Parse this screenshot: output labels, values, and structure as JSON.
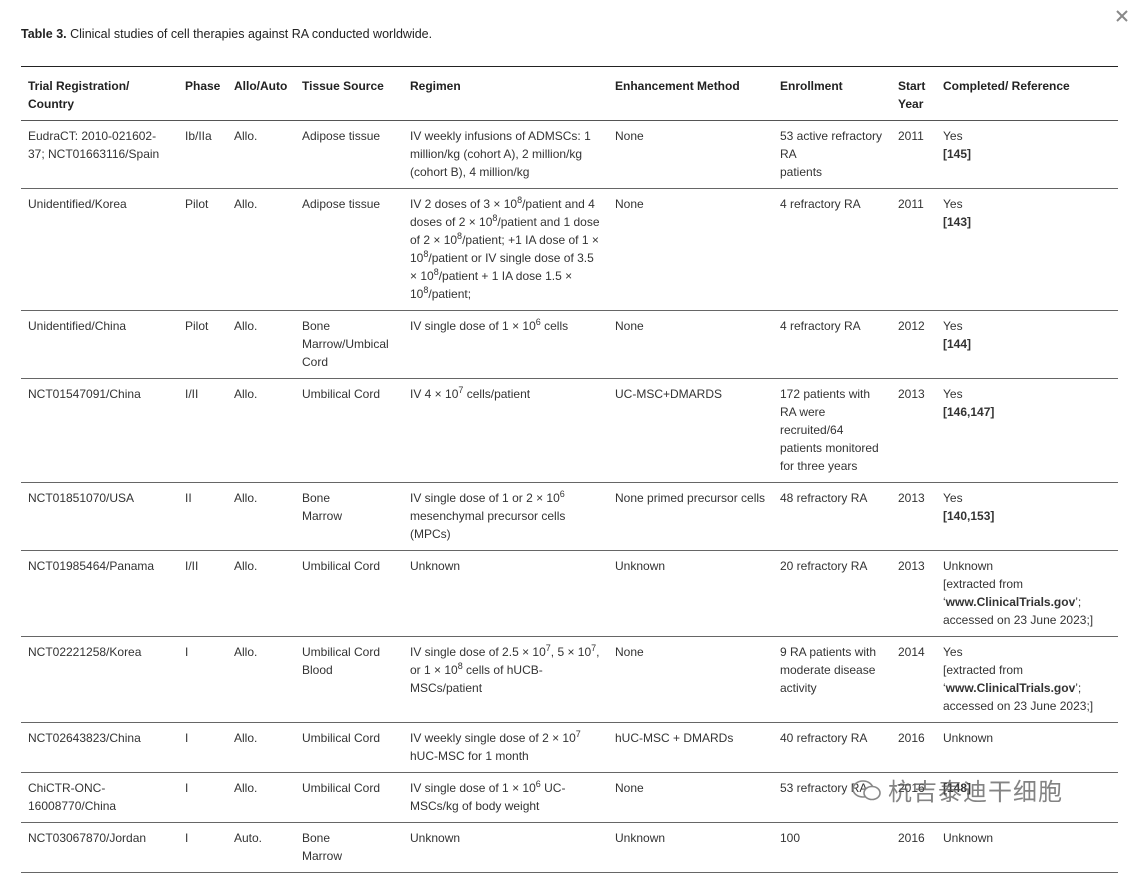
{
  "caption": {
    "label": "Table 3.",
    "text": "Clinical studies of cell therapies against RA conducted worldwide."
  },
  "watermark": "杭吉泰迪干细胞",
  "table": {
    "columns": [
      "Trial Registration/ Country",
      "Phase",
      "Allo/Auto",
      "Tissue Source",
      "Regimen",
      "Enhancement Method",
      "Enrollment",
      "Start Year",
      "Completed/ Reference"
    ],
    "rows": [
      [
        "EudraCT: 2010-021602-37; NCT01663116/Spain",
        "Ib/IIa",
        "Allo.",
        "Adipose tissue",
        "IV weekly infusions of ADMSCs: 1 million/kg (cohort A), 2 million/kg (cohort B), 4 million/kg",
        "None",
        [
          "53 active refractory RA",
          "patients"
        ],
        "2011",
        [
          "Yes",
          [
            {
              "bold": "[145]"
            }
          ]
        ]
      ],
      [
        "Unidentified/Korea",
        "Pilot",
        "Allo.",
        "Adipose tissue",
        [
          [
            "IV 2 doses of 3 × 10",
            {
              "sup": "8"
            },
            "/patient and 4 doses of 2 × 10",
            {
              "sup": "8"
            },
            "/patient and 1 dose of 2 × 10",
            {
              "sup": "8"
            },
            "/patient; +1 IA dose of 1 × 10",
            {
              "sup": "8"
            },
            "/patient or IV single dose of 3.5 × 10",
            {
              "sup": "8"
            },
            "/patient + 1 IA dose 1.5 × 10",
            {
              "sup": "8"
            },
            "/patient;"
          ]
        ],
        "None",
        "4 refractory RA",
        "2011",
        [
          "Yes",
          [
            {
              "bold": "[143]"
            }
          ]
        ]
      ],
      [
        "Unidentified/China",
        "Pilot",
        "Allo.",
        "Bone Marrow/Umbical Cord",
        [
          [
            "IV single dose of 1 × 10",
            {
              "sup": "6"
            },
            " cells"
          ]
        ],
        "None",
        "4 refractory RA",
        "2012",
        [
          "Yes",
          [
            {
              "bold": "[144]"
            }
          ]
        ]
      ],
      [
        "NCT01547091/China",
        "I/II",
        "Allo.",
        "Umbilical Cord",
        [
          [
            "IV 4 × 10",
            {
              "sup": "7"
            },
            " cells/patient"
          ]
        ],
        "UC-MSC+DMARDS",
        "172 patients with RA were recruited/64 patients monitored for three years",
        "2013",
        [
          "Yes",
          [
            {
              "bold": "[146,147]"
            }
          ]
        ]
      ],
      [
        "NCT01851070/USA",
        "II",
        "Allo.",
        [
          "Bone",
          "Marrow"
        ],
        [
          [
            "IV single dose of 1 or 2 × 10",
            {
              "sup": "6"
            },
            " mesenchymal precursor cells (MPCs)"
          ]
        ],
        "None primed precursor cells",
        "48 refractory RA",
        "2013",
        [
          "Yes",
          [
            {
              "bold": "[140,153]"
            }
          ]
        ]
      ],
      [
        "NCT01985464/Panama",
        "I/II",
        "Allo.",
        "Umbilical Cord",
        "Unknown",
        "Unknown",
        "20 refractory RA",
        "2013",
        [
          "Unknown",
          "[extracted from",
          [
            "‘",
            {
              "bold": "www.ClinicalTrials.gov"
            },
            "’;"
          ],
          "accessed on 23 June 2023;]"
        ]
      ],
      [
        "NCT02221258/Korea",
        "I",
        "Allo.",
        "Umbilical Cord Blood",
        [
          [
            "IV single dose of 2.5 × 10",
            {
              "sup": "7"
            },
            ", 5 × 10",
            {
              "sup": "7"
            },
            ", or 1 × 10",
            {
              "sup": "8"
            },
            " cells of hUCB-MSCs/patient"
          ]
        ],
        "None",
        "9 RA patients with moderate disease activity",
        "2014",
        [
          "Yes",
          "[extracted from",
          [
            "‘",
            {
              "bold": "www.ClinicalTrials.gov"
            },
            "’;"
          ],
          "accessed on 23 June 2023;]"
        ]
      ],
      [
        "NCT02643823/China",
        "I",
        "Allo.",
        "Umbilical Cord",
        [
          [
            "IV weekly single dose of 2 × 10",
            {
              "sup": "7"
            },
            " hUC-MSC for 1 month"
          ]
        ],
        "hUC-MSC + DMARDs",
        "40 refractory RA",
        "2016",
        "Unknown"
      ],
      [
        "ChiCTR-ONC-16008770/China",
        "I",
        "Allo.",
        "Umbilical Cord",
        [
          [
            "IV single dose of 1 × 10",
            {
              "sup": "6"
            },
            " UC-MSCs/kg of body weight"
          ]
        ],
        "None",
        "53 refractory RA",
        "2016",
        [
          [
            {
              "bold": "[148]"
            }
          ]
        ]
      ],
      [
        "NCT03067870/Jordan",
        "I",
        "Auto.",
        [
          "Bone",
          "Marrow"
        ],
        "Unknown",
        "Unknown",
        "100",
        "2016",
        "Unknown"
      ]
    ]
  }
}
